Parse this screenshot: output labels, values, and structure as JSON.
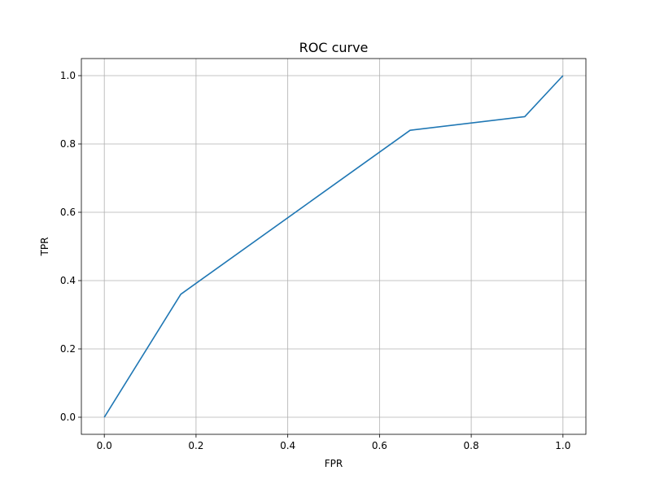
{
  "chart_data": {
    "type": "line",
    "title": "ROC curve",
    "xlabel": "FPR",
    "ylabel": "TPR",
    "xlim": [
      -0.05,
      1.05
    ],
    "ylim": [
      -0.05,
      1.05
    ],
    "xticks": [
      0.0,
      0.2,
      0.4,
      0.6,
      0.8,
      1.0
    ],
    "yticks": [
      0.0,
      0.2,
      0.4,
      0.6,
      0.8,
      1.0
    ],
    "xtick_labels": [
      "0.0",
      "0.2",
      "0.4",
      "0.6",
      "0.8",
      "1.0"
    ],
    "ytick_labels": [
      "0.0",
      "0.2",
      "0.4",
      "0.6",
      "0.8",
      "1.0"
    ],
    "grid": true,
    "legend": "none",
    "series": [
      {
        "color": "#1f77b4",
        "x": [
          0.0,
          0.1667,
          0.6667,
          0.9167,
          1.0
        ],
        "y": [
          0.0,
          0.36,
          0.84,
          0.88,
          1.0
        ]
      }
    ]
  }
}
